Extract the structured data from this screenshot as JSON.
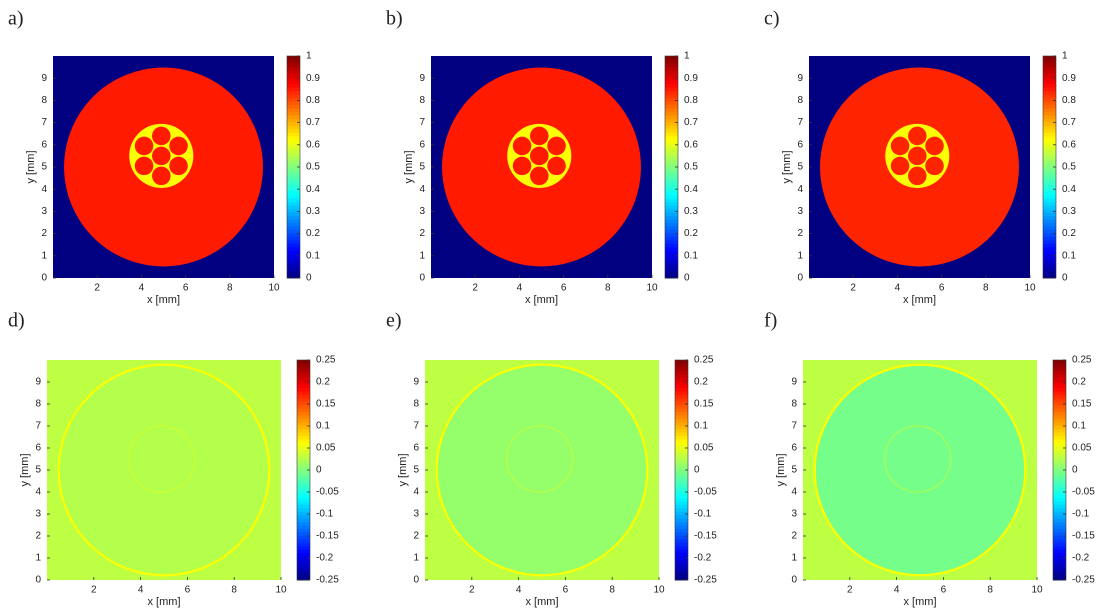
{
  "chart_data": [
    {
      "type": "heatmap",
      "label": "a)",
      "xlabel": "x [mm]",
      "ylabel": "y [mm]",
      "xlim": [
        0,
        10
      ],
      "ylim": [
        0,
        10
      ],
      "xticks": [
        2,
        4,
        6,
        8,
        10
      ],
      "yticks": [
        0,
        1,
        2,
        3,
        4,
        5,
        6,
        7,
        8,
        9
      ],
      "clim": [
        0,
        1
      ],
      "cticks": [
        0,
        0.1,
        0.2,
        0.3,
        0.4,
        0.5,
        0.6,
        0.7,
        0.8,
        0.9,
        1
      ],
      "colormap": "jet",
      "background": 0,
      "regions": [
        {
          "cx": 5,
          "cy": 5,
          "r": 4.5,
          "value": 0.85
        },
        {
          "cx": 4.9,
          "cy": 5.5,
          "r": 1.45,
          "value": 0.62
        },
        {
          "cx": 4.9,
          "cy": 5.5,
          "r": 0.42,
          "value": 0.85
        },
        {
          "cx": 4.9,
          "cy": 6.4,
          "r": 0.42,
          "value": 0.85
        },
        {
          "cx": 5.68,
          "cy": 5.95,
          "r": 0.42,
          "value": 0.85
        },
        {
          "cx": 5.68,
          "cy": 5.05,
          "r": 0.42,
          "value": 0.85
        },
        {
          "cx": 4.9,
          "cy": 4.6,
          "r": 0.42,
          "value": 0.85
        },
        {
          "cx": 4.12,
          "cy": 5.05,
          "r": 0.42,
          "value": 0.85
        },
        {
          "cx": 4.12,
          "cy": 5.95,
          "r": 0.42,
          "value": 0.85
        }
      ]
    },
    {
      "type": "heatmap",
      "label": "b)",
      "xlabel": "x [mm]",
      "ylabel": "y [mm]",
      "xlim": [
        0,
        10
      ],
      "ylim": [
        0,
        10
      ],
      "xticks": [
        2,
        4,
        6,
        8,
        10
      ],
      "yticks": [
        0,
        1,
        2,
        3,
        4,
        5,
        6,
        7,
        8,
        9
      ],
      "clim": [
        0,
        1
      ],
      "cticks": [
        0,
        0.1,
        0.2,
        0.3,
        0.4,
        0.5,
        0.6,
        0.7,
        0.8,
        0.9,
        1
      ],
      "colormap": "jet",
      "background": 0,
      "regions": [
        {
          "cx": 5,
          "cy": 5,
          "r": 4.5,
          "value": 0.85
        },
        {
          "cx": 4.9,
          "cy": 5.5,
          "r": 1.45,
          "value": 0.62
        },
        {
          "cx": 4.9,
          "cy": 5.5,
          "r": 0.42,
          "value": 0.85
        },
        {
          "cx": 4.9,
          "cy": 6.4,
          "r": 0.42,
          "value": 0.85
        },
        {
          "cx": 5.68,
          "cy": 5.95,
          "r": 0.42,
          "value": 0.85
        },
        {
          "cx": 5.68,
          "cy": 5.05,
          "r": 0.42,
          "value": 0.85
        },
        {
          "cx": 4.9,
          "cy": 4.6,
          "r": 0.42,
          "value": 0.85
        },
        {
          "cx": 4.12,
          "cy": 5.05,
          "r": 0.42,
          "value": 0.85
        },
        {
          "cx": 4.12,
          "cy": 5.95,
          "r": 0.42,
          "value": 0.85
        }
      ]
    },
    {
      "type": "heatmap",
      "label": "c)",
      "xlabel": "x [mm]",
      "ylabel": "y [mm]",
      "xlim": [
        0,
        10
      ],
      "ylim": [
        0,
        10
      ],
      "xticks": [
        2,
        4,
        6,
        8,
        10
      ],
      "yticks": [
        0,
        1,
        2,
        3,
        4,
        5,
        6,
        7,
        8,
        9
      ],
      "clim": [
        0,
        1
      ],
      "cticks": [
        0,
        0.1,
        0.2,
        0.3,
        0.4,
        0.5,
        0.6,
        0.7,
        0.8,
        0.9,
        1
      ],
      "colormap": "jet",
      "background": 0,
      "regions": [
        {
          "cx": 5,
          "cy": 5,
          "r": 4.5,
          "value": 0.84
        },
        {
          "cx": 4.9,
          "cy": 5.5,
          "r": 1.45,
          "value": 0.62
        },
        {
          "cx": 4.9,
          "cy": 5.5,
          "r": 0.42,
          "value": 0.84
        },
        {
          "cx": 4.9,
          "cy": 6.4,
          "r": 0.42,
          "value": 0.84
        },
        {
          "cx": 5.68,
          "cy": 5.95,
          "r": 0.42,
          "value": 0.84
        },
        {
          "cx": 5.68,
          "cy": 5.05,
          "r": 0.42,
          "value": 0.84
        },
        {
          "cx": 4.9,
          "cy": 4.6,
          "r": 0.42,
          "value": 0.84
        },
        {
          "cx": 4.12,
          "cy": 5.05,
          "r": 0.42,
          "value": 0.84
        },
        {
          "cx": 4.12,
          "cy": 5.95,
          "r": 0.42,
          "value": 0.84
        }
      ]
    },
    {
      "type": "heatmap",
      "label": "d)",
      "xlabel": "x [mm]",
      "ylabel": "y [mm]",
      "xlim": [
        0,
        10
      ],
      "ylim": [
        0,
        10
      ],
      "xticks": [
        2,
        4,
        6,
        8,
        10
      ],
      "yticks": [
        0,
        1,
        2,
        3,
        4,
        5,
        6,
        7,
        8,
        9
      ],
      "clim": [
        -0.25,
        0.25
      ],
      "cticks": [
        -0.25,
        -0.2,
        -0.15,
        -0.1,
        -0.05,
        0,
        0.05,
        0.1,
        0.15,
        0.2,
        0.25
      ],
      "colormap": "jet",
      "background": 0.03,
      "regions": [
        {
          "cx": 5,
          "cy": 5,
          "r": 4.55,
          "value": 0.06
        },
        {
          "cx": 5,
          "cy": 5,
          "r": 4.45,
          "value": 0.025
        },
        {
          "cx": 4.9,
          "cy": 5.5,
          "r": 1.45,
          "value": 0.035
        },
        {
          "cx": 4.9,
          "cy": 5.5,
          "r": 1.38,
          "value": 0.025
        }
      ]
    },
    {
      "type": "heatmap",
      "label": "e)",
      "xlabel": "x [mm]",
      "ylabel": "y [mm]",
      "xlim": [
        0,
        10
      ],
      "ylim": [
        0,
        10
      ],
      "xticks": [
        2,
        4,
        6,
        8,
        10
      ],
      "yticks": [
        0,
        1,
        2,
        3,
        4,
        5,
        6,
        7,
        8,
        9
      ],
      "clim": [
        -0.25,
        0.25
      ],
      "cticks": [
        -0.25,
        -0.2,
        -0.15,
        -0.1,
        -0.05,
        0,
        0.05,
        0.1,
        0.15,
        0.2,
        0.25
      ],
      "colormap": "jet",
      "background": 0.03,
      "regions": [
        {
          "cx": 5,
          "cy": 5,
          "r": 4.55,
          "value": 0.06
        },
        {
          "cx": 5,
          "cy": 5,
          "r": 4.45,
          "value": 0.01
        },
        {
          "cx": 4.9,
          "cy": 5.5,
          "r": 1.45,
          "value": 0.025
        },
        {
          "cx": 4.9,
          "cy": 5.5,
          "r": 1.38,
          "value": 0.01
        }
      ]
    },
    {
      "type": "heatmap",
      "label": "f)",
      "xlabel": "x [mm]",
      "ylabel": "y [mm]",
      "xlim": [
        0,
        10
      ],
      "ylim": [
        0,
        10
      ],
      "xticks": [
        2,
        4,
        6,
        8,
        10
      ],
      "yticks": [
        0,
        1,
        2,
        3,
        4,
        5,
        6,
        7,
        8,
        9
      ],
      "clim": [
        -0.25,
        0.25
      ],
      "cticks": [
        -0.25,
        -0.2,
        -0.15,
        -0.1,
        -0.05,
        0,
        0.05,
        0.1,
        0.15,
        0.2,
        0.25
      ],
      "colormap": "jet",
      "background": 0.03,
      "regions": [
        {
          "cx": 5,
          "cy": 5,
          "r": 4.55,
          "value": 0.06
        },
        {
          "cx": 5,
          "cy": 5,
          "r": 4.45,
          "value": -0.005
        },
        {
          "cx": 4.9,
          "cy": 5.5,
          "r": 1.45,
          "value": 0.015
        },
        {
          "cx": 4.9,
          "cy": 5.5,
          "r": 1.38,
          "value": -0.005
        }
      ]
    }
  ]
}
